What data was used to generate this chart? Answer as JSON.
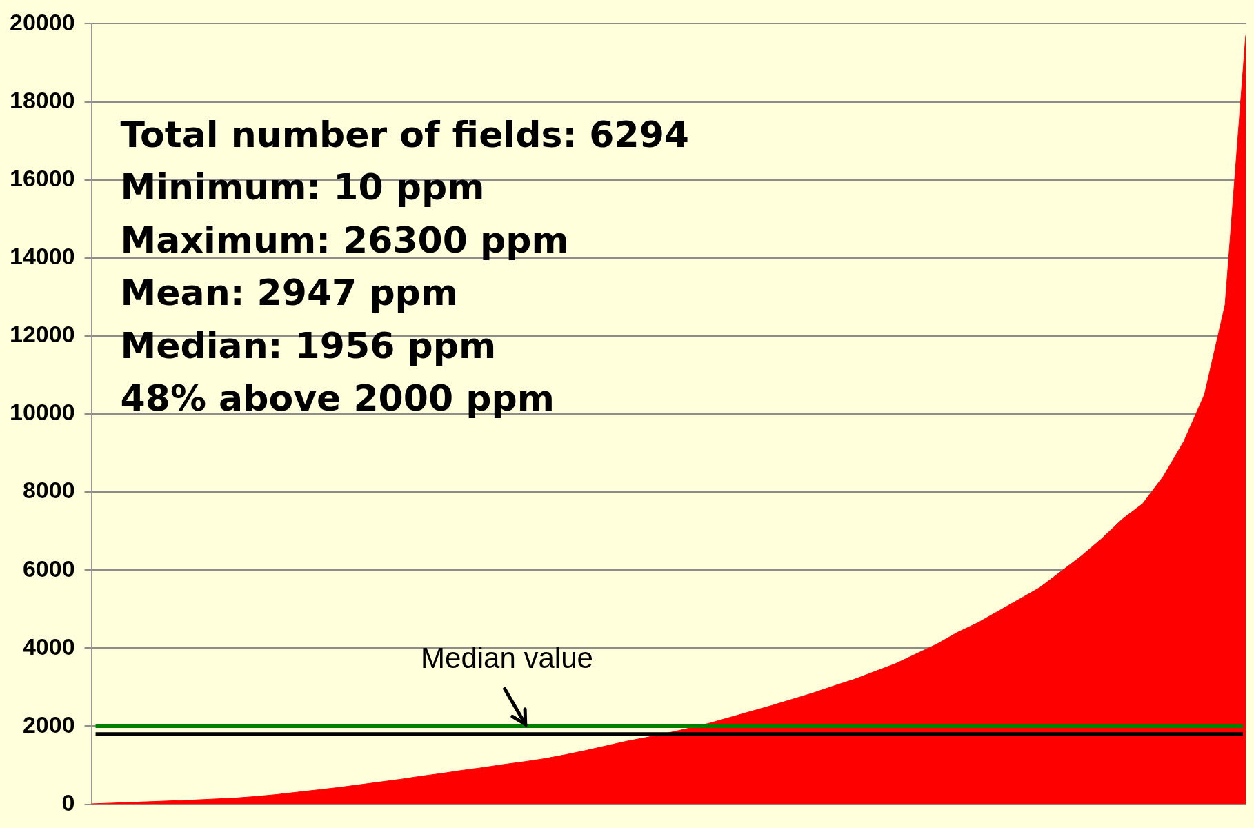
{
  "chart_data": {
    "type": "area",
    "categories": [
      null,
      null,
      null,
      null,
      null,
      null,
      null,
      null,
      null,
      null,
      null,
      null,
      null,
      null,
      null,
      null,
      null,
      null,
      null,
      null,
      null,
      null,
      null,
      null,
      null,
      null,
      null,
      null,
      null,
      null,
      null,
      null,
      null,
      null,
      null,
      null,
      null,
      null,
      null,
      null,
      null,
      null,
      null,
      null,
      null,
      null,
      null,
      null,
      null,
      null,
      null,
      null,
      null,
      null,
      null,
      null,
      null
    ],
    "series": [
      {
        "color": "#ff0000",
        "values": [
          10,
          30,
          50,
          70,
          90,
          110,
          135,
          160,
          200,
          250,
          310,
          370,
          430,
          500,
          570,
          640,
          720,
          790,
          870,
          940,
          1020,
          1090,
          1170,
          1270,
          1380,
          1500,
          1620,
          1720,
          1830,
          1950,
          2080,
          2230,
          2380,
          2530,
          2690,
          2850,
          3030,
          3200,
          3400,
          3600,
          3850,
          4100,
          4400,
          4650,
          4950,
          5250,
          5550,
          5950,
          6350,
          6800,
          7300,
          7700,
          8400,
          9300,
          10500,
          12800,
          19700
        ]
      }
    ],
    "ylim": [
      0,
      20000
    ],
    "yticks": [
      0,
      2000,
      4000,
      6000,
      8000,
      10000,
      12000,
      14000,
      16000,
      18000,
      20000
    ],
    "tick_labels": "y",
    "grid": "y",
    "ref_lines": [
      {
        "axis": "y",
        "value": 2000,
        "color": "#008000"
      },
      {
        "axis": "y",
        "value": 1800,
        "color": "#000000",
        "label": "Median value"
      }
    ],
    "annotations": [
      "Total number of fields: 6294",
      "Minimum: 10 ppm",
      "Maximum: 26300 ppm",
      "Mean: 2947 ppm",
      "Median: 1956 ppm",
      "48% above 2000 ppm"
    ]
  }
}
